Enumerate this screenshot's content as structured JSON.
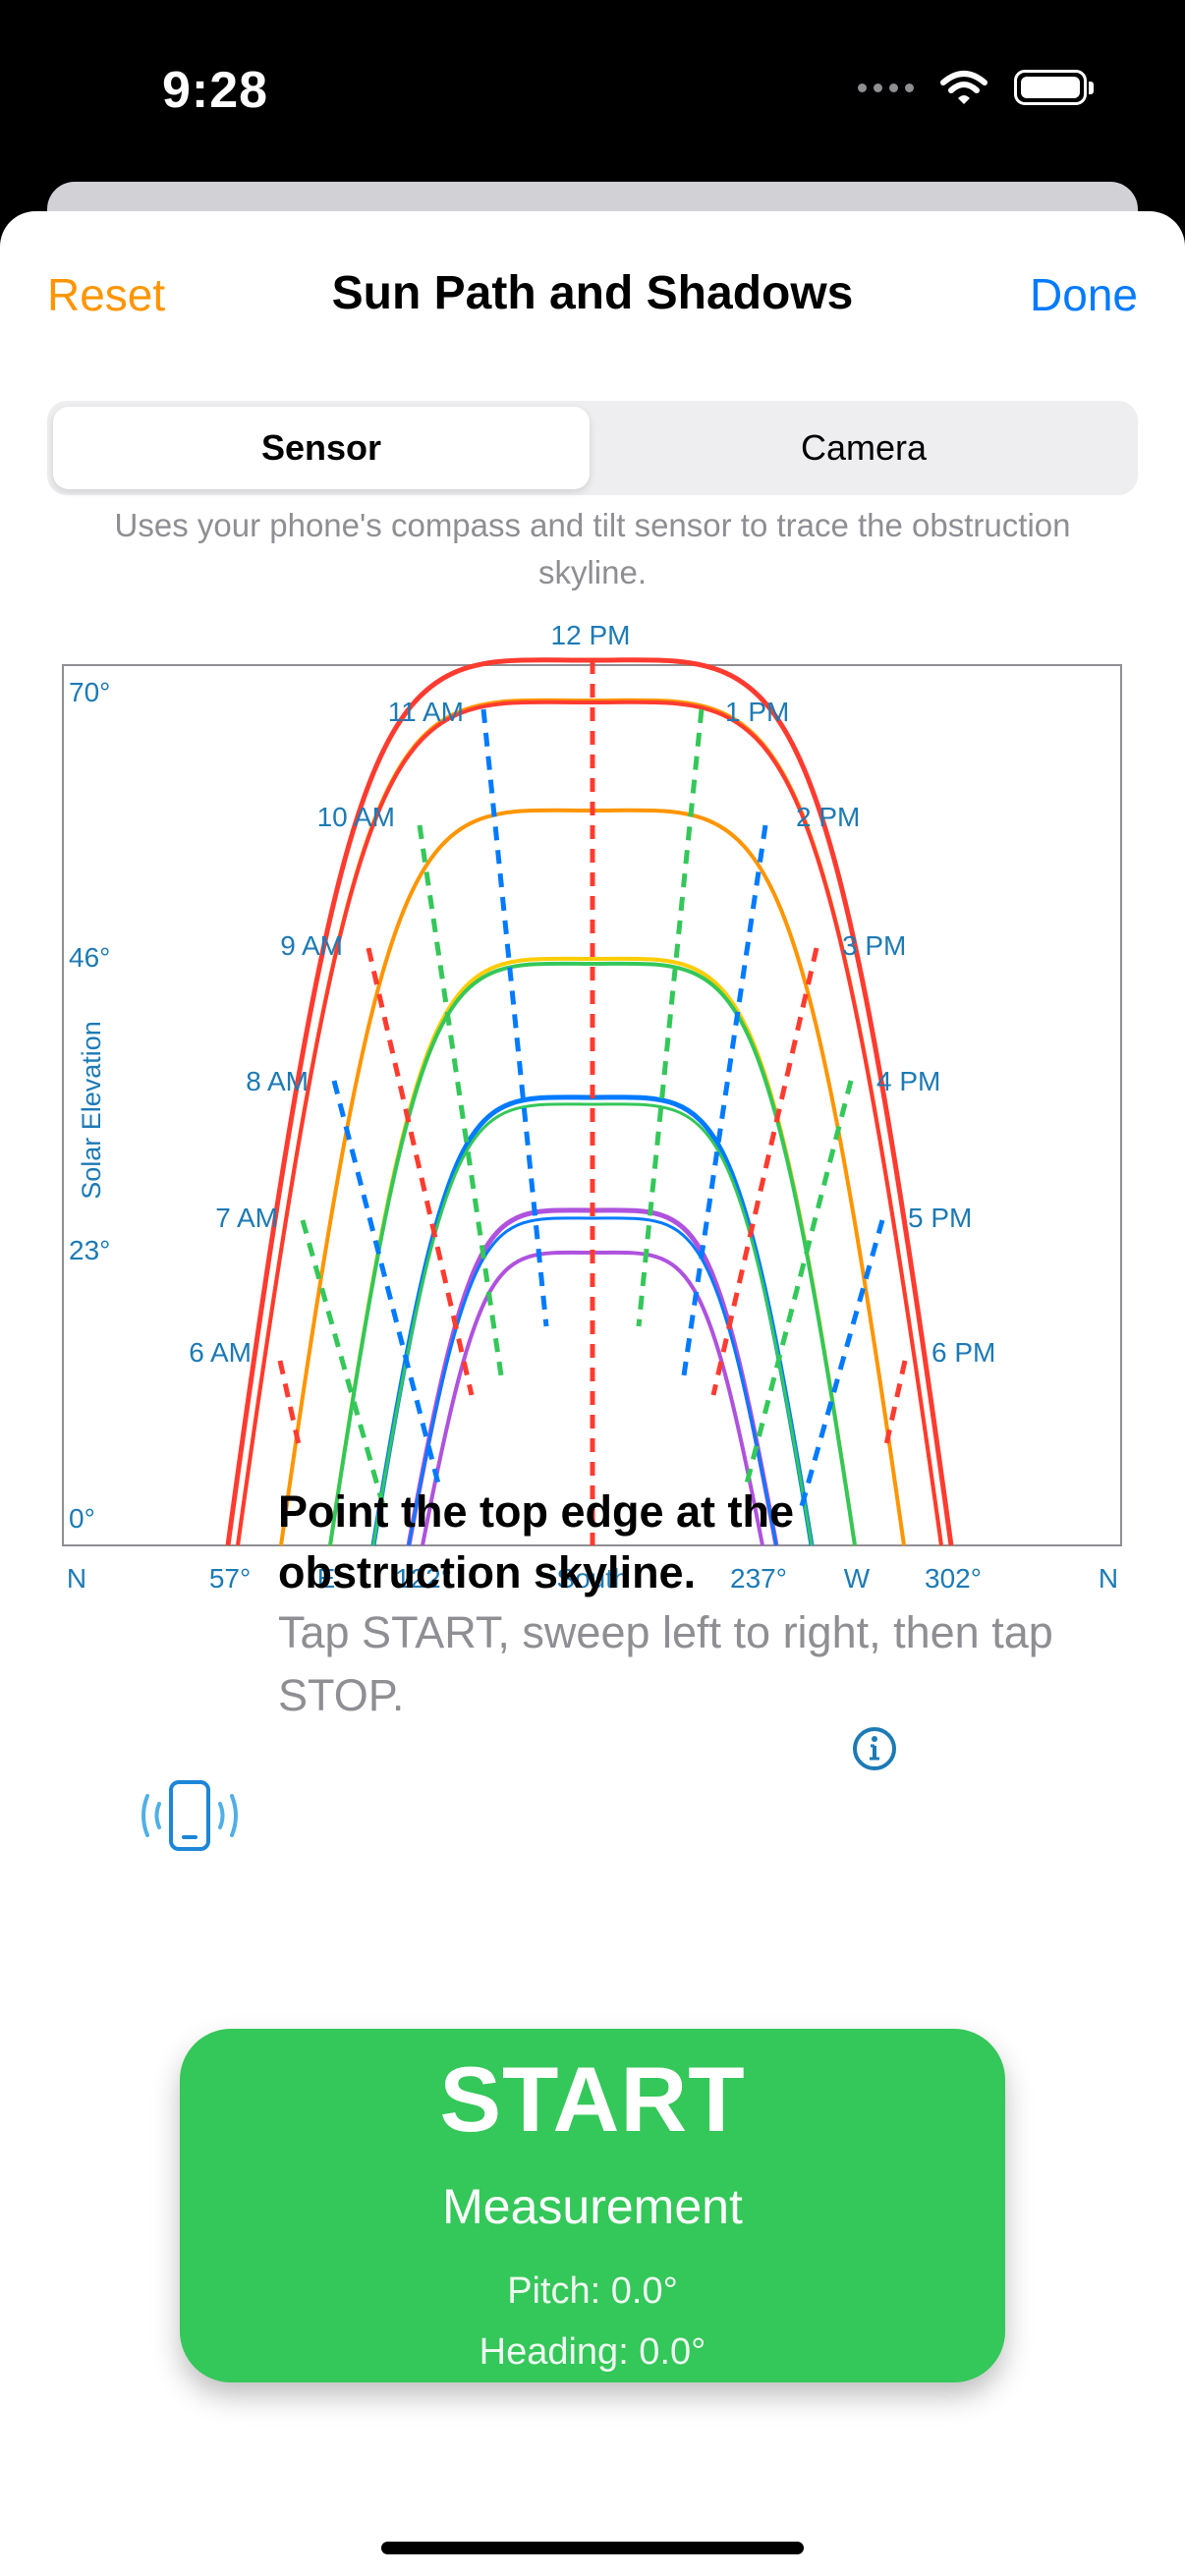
{
  "status_bar": {
    "time": "9:28"
  },
  "nav": {
    "left": "Reset",
    "title": "Sun Path and Shadows",
    "right": "Done"
  },
  "segment": {
    "selected": "Sensor",
    "other": "Camera"
  },
  "segment_description": "Uses your phone's compass and tilt sensor to trace the obstruction skyline.",
  "chart_data": {
    "type": "line",
    "ylabel": "Solar Elevation",
    "yticks": [
      "70°",
      "46°",
      "23°",
      "0°"
    ],
    "xticks": [
      "N",
      "57°",
      "E",
      "122°",
      "South",
      "237°",
      "W",
      "302°",
      "N"
    ],
    "hour_labels_left": [
      "12 PM",
      "11 AM",
      "10 AM",
      "9 AM",
      "8 AM",
      "7 AM",
      "6 AM"
    ],
    "hour_labels_right": [
      "1 PM",
      "2 PM",
      "3 PM",
      "4 PM",
      "5 PM",
      "6 PM"
    ],
    "colors": {
      "red": "#ff3b30",
      "orange": "#ff9500",
      "yellow": "#ffcc00",
      "green": "#34c759",
      "blue": "#007aff",
      "purple": "#af52de",
      "label": "#1c7ab5"
    }
  },
  "instruction": {
    "title": "Point the top edge at the obstruction skyline.",
    "subtitle": "Tap START, sweep left to right, then tap STOP."
  },
  "start_button": {
    "main": "START",
    "sub": "Measurement",
    "pitch": "Pitch: 0.0°",
    "heading": "Heading: 0.0°"
  }
}
